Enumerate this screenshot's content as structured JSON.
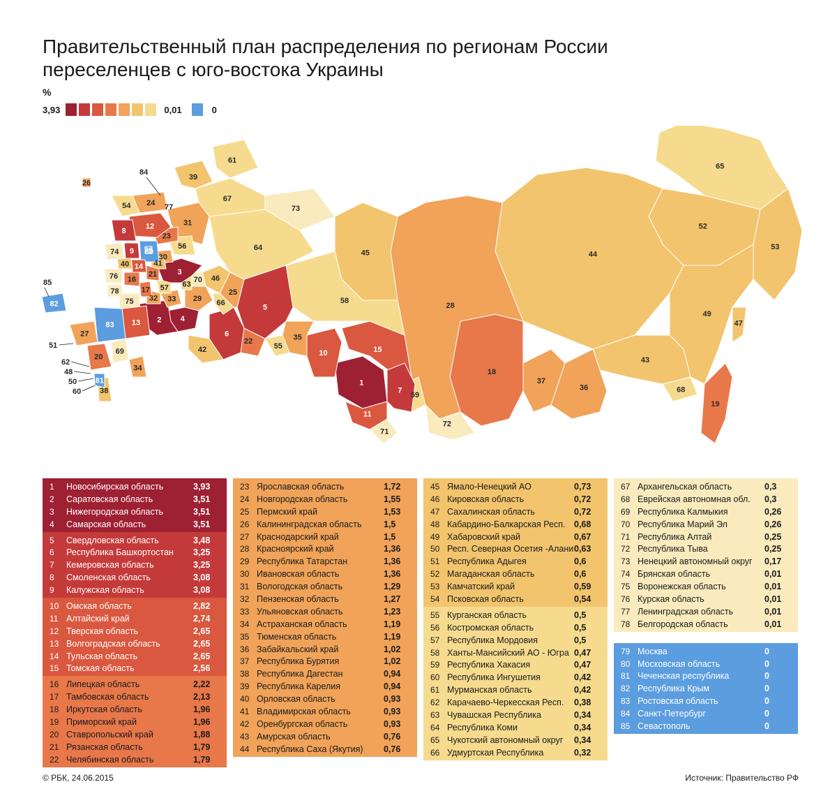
{
  "title": "Правительственный план распределения по регионам России переселенцев с юго-востока Украины",
  "legend": {
    "unit": "%",
    "max_label": "3,93",
    "min_label": "0,01",
    "zero_label": "0",
    "scale_colors": [
      "#9e2033",
      "#c43a3a",
      "#d9583f",
      "#e8784a",
      "#f0a359",
      "#f3c46e",
      "#f6db8f",
      "#f9ebbd"
    ],
    "zero_color": "#5b9ddf"
  },
  "regions": [
    {
      "n": "1",
      "name": "Новосибирская область",
      "v": "3,93"
    },
    {
      "n": "2",
      "name": "Саратовская область",
      "v": "3,51"
    },
    {
      "n": "3",
      "name": "Нижегородская область",
      "v": "3,51"
    },
    {
      "n": "4",
      "name": "Самарская область",
      "v": "3,51"
    },
    {
      "n": "5",
      "name": "Свердловская область",
      "v": "3,48"
    },
    {
      "n": "6",
      "name": "Республика Башкортостан",
      "v": "3,25"
    },
    {
      "n": "7",
      "name": "Кемеровская область",
      "v": "3,25"
    },
    {
      "n": "8",
      "name": "Смоленская область",
      "v": "3,08"
    },
    {
      "n": "9",
      "name": "Калужская область",
      "v": "3,08"
    },
    {
      "n": "10",
      "name": "Омская область",
      "v": "2,82"
    },
    {
      "n": "11",
      "name": "Алтайский край",
      "v": "2,74"
    },
    {
      "n": "12",
      "name": "Тверская область",
      "v": "2,65"
    },
    {
      "n": "13",
      "name": "Волгоградская область",
      "v": "2,65"
    },
    {
      "n": "14",
      "name": "Тульская область",
      "v": "2,65"
    },
    {
      "n": "15",
      "name": "Томская область",
      "v": "2,56"
    },
    {
      "n": "16",
      "name": "Липецкая область",
      "v": "2,22"
    },
    {
      "n": "17",
      "name": "Тамбовская область",
      "v": "2,13"
    },
    {
      "n": "18",
      "name": "Иркутская область",
      "v": "1,96"
    },
    {
      "n": "19",
      "name": "Приморский край",
      "v": "1,96"
    },
    {
      "n": "20",
      "name": "Ставропольский край",
      "v": "1,88"
    },
    {
      "n": "21",
      "name": "Рязанская область",
      "v": "1,79"
    },
    {
      "n": "22",
      "name": "Челябинская область",
      "v": "1,79"
    },
    {
      "n": "23",
      "name": "Ярославская область",
      "v": "1,72"
    },
    {
      "n": "24",
      "name": "Новгородская область",
      "v": "1,55"
    },
    {
      "n": "25",
      "name": "Пермский край",
      "v": "1,53"
    },
    {
      "n": "26",
      "name": "Калининградская область",
      "v": "1,5"
    },
    {
      "n": "27",
      "name": "Краснодарский край",
      "v": "1,5"
    },
    {
      "n": "28",
      "name": "Красноярский край",
      "v": "1,36"
    },
    {
      "n": "29",
      "name": "Республика Татарстан",
      "v": "1,36"
    },
    {
      "n": "30",
      "name": "Ивановская область",
      "v": "1,36"
    },
    {
      "n": "31",
      "name": "Вологодская область",
      "v": "1,29"
    },
    {
      "n": "32",
      "name": "Пензенская область",
      "v": "1,27"
    },
    {
      "n": "33",
      "name": "Ульяновская область",
      "v": "1,23"
    },
    {
      "n": "34",
      "name": "Астраханская область",
      "v": "1,19"
    },
    {
      "n": "35",
      "name": "Тюменская область",
      "v": "1,19"
    },
    {
      "n": "36",
      "name": "Забайкальский край",
      "v": "1,02"
    },
    {
      "n": "37",
      "name": "Республика Бурятия",
      "v": "1,02"
    },
    {
      "n": "38",
      "name": "Республика Дагестан",
      "v": "0,94"
    },
    {
      "n": "39",
      "name": "Республика Карелия",
      "v": "0,94"
    },
    {
      "n": "40",
      "name": "Орловская область",
      "v": "0,93"
    },
    {
      "n": "41",
      "name": "Владимирская область",
      "v": "0,93"
    },
    {
      "n": "42",
      "name": "Оренбургская область",
      "v": "0,93"
    },
    {
      "n": "43",
      "name": "Амурская область",
      "v": "0,76"
    },
    {
      "n": "44",
      "name": "Республика Саха (Якутия)",
      "v": "0,76"
    },
    {
      "n": "45",
      "name": "Ямало-Ненецкий АО",
      "v": "0,73"
    },
    {
      "n": "46",
      "name": "Кировская область",
      "v": "0,72"
    },
    {
      "n": "47",
      "name": "Сахалинская область",
      "v": "0,72"
    },
    {
      "n": "48",
      "name": "Кабардино-Балкарская Респ.",
      "v": "0,68"
    },
    {
      "n": "49",
      "name": "Хабаровский край",
      "v": "0,67"
    },
    {
      "n": "50",
      "name": "Респ. Северная Осетия -Алания",
      "v": "0,63"
    },
    {
      "n": "51",
      "name": "Республика Адыгея",
      "v": "0,6"
    },
    {
      "n": "52",
      "name": "Магаданская область",
      "v": "0,6"
    },
    {
      "n": "53",
      "name": "Камчатский край",
      "v": "0,59"
    },
    {
      "n": "54",
      "name": "Псковская область",
      "v": "0,54"
    },
    {
      "n": "55",
      "name": "Курганская область",
      "v": "0,5"
    },
    {
      "n": "56",
      "name": "Костромская область",
      "v": "0,5"
    },
    {
      "n": "57",
      "name": "Республика Мордовия",
      "v": "0,5"
    },
    {
      "n": "58",
      "name": "Ханты-Мансийский АО  - Югра",
      "v": "0,47"
    },
    {
      "n": "59",
      "name": "Республика Хакасия",
      "v": "0,47"
    },
    {
      "n": "60",
      "name": "Республика Ингушетия",
      "v": "0,42"
    },
    {
      "n": "61",
      "name": "Мурманская область",
      "v": "0,42"
    },
    {
      "n": "62",
      "name": "Карачаево-Черкесская Респ.",
      "v": "0,38"
    },
    {
      "n": "63",
      "name": "Чувашская Республика",
      "v": "0,34"
    },
    {
      "n": "64",
      "name": "Республика Коми",
      "v": "0,34"
    },
    {
      "n": "65",
      "name": "Чукотский автономный округ",
      "v": "0,34"
    },
    {
      "n": "66",
      "name": "Удмуртская Республика",
      "v": "0,32"
    },
    {
      "n": "67",
      "name": "Архангельская область",
      "v": "0,3"
    },
    {
      "n": "68",
      "name": "Еврейская автономная обл.",
      "v": "0,3"
    },
    {
      "n": "69",
      "name": "Республика Калмыкия",
      "v": "0,26"
    },
    {
      "n": "70",
      "name": "Республика Марий Эл",
      "v": "0,26"
    },
    {
      "n": "71",
      "name": "Республика Алтай",
      "v": "0,25"
    },
    {
      "n": "72",
      "name": "Республика Тыва",
      "v": "0,25"
    },
    {
      "n": "73",
      "name": "Ненецкий автономный округ",
      "v": "0,17"
    },
    {
      "n": "74",
      "name": "Брянская область",
      "v": "0,01"
    },
    {
      "n": "75",
      "name": "Воронежская область",
      "v": "0,01"
    },
    {
      "n": "76",
      "name": "Курская область",
      "v": "0,01"
    },
    {
      "n": "77",
      "name": "Ленинградская область",
      "v": "0,01"
    },
    {
      "n": "78",
      "name": "Белгородская область",
      "v": "0,01"
    },
    {
      "n": "79",
      "name": "Москва",
      "v": "0"
    },
    {
      "n": "80",
      "name": "Московская область",
      "v": "0"
    },
    {
      "n": "81",
      "name": "Чеченская республика",
      "v": "0"
    },
    {
      "n": "82",
      "name": "Республика Крым",
      "v": "0"
    },
    {
      "n": "83",
      "name": "Ростовская область",
      "v": "0"
    },
    {
      "n": "84",
      "name": "Санкт-Петербург",
      "v": "0"
    },
    {
      "n": "85",
      "name": "Севастополь",
      "v": "0"
    }
  ],
  "footer": {
    "copyright": "© РБК, 24.06.2015",
    "source_prefix": "Источник:",
    "source": "Правительство РФ"
  }
}
